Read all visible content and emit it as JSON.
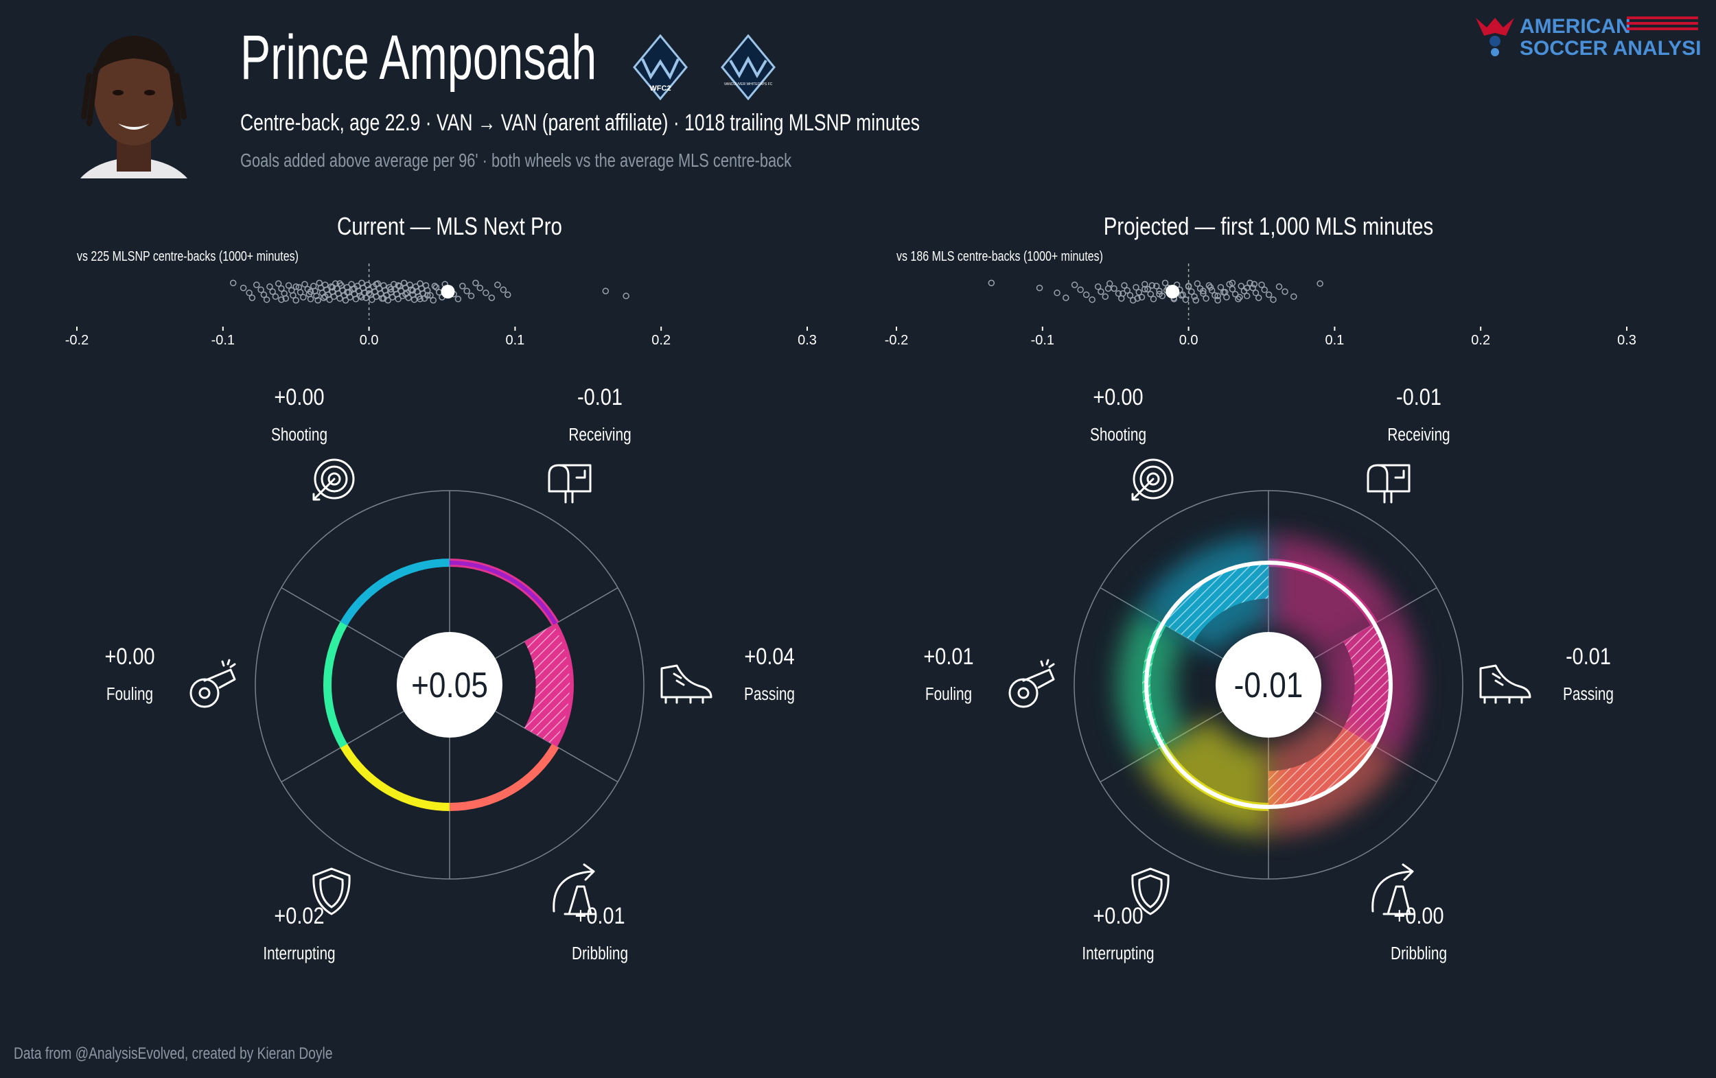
{
  "header": {
    "player_name": "Prince Amponsah",
    "subtitle": "Centre-back, age 22.9 · VAN → VAN (parent affiliate) · 1018 trailing MLSNP minutes",
    "note": "Goals added above average per 96' · both wheels vs the average MLS centre-back",
    "badge_left_text": "WFC2",
    "badge_right_text": "VANCOUVER WHITECAPS FC"
  },
  "brand": {
    "line1": "AMERICAN",
    "line2": "SOCCER ANALYSIS"
  },
  "footer": {
    "credit": "Data from @AnalysisEvolved, created by Kieran Doyle"
  },
  "colors": {
    "background": "#17202b",
    "shooting": "#e0348f",
    "receiving": "#e0348f",
    "passing": "#ff6b5e",
    "dribbling": "#f5f01a",
    "interrupting": "#2ef0a0",
    "fouling": "#16b3d9",
    "ring_purple": "#a020c8",
    "grid": "#7a828c"
  },
  "chart_data": [
    {
      "type": "radial-bar",
      "title": "Current — MLS Next Pro",
      "strip_label": "vs 225 MLSNP centre-backs (1000+ minutes)",
      "strip_ticks": [
        "-0.2",
        "-0.1",
        "0.0",
        "0.1",
        "0.2",
        "0.3"
      ],
      "strip_domain": [
        -0.2,
        0.3
      ],
      "player_value": 0.054,
      "others_x": [
        -0.093,
        -0.086,
        -0.082,
        -0.08,
        -0.077,
        -0.074,
        -0.072,
        -0.07,
        -0.068,
        -0.066,
        -0.064,
        -0.062,
        -0.06,
        -0.058,
        -0.057,
        -0.055,
        -0.053,
        -0.052,
        -0.05,
        -0.048,
        -0.047,
        -0.045,
        -0.044,
        -0.042,
        -0.041,
        -0.04,
        -0.038,
        -0.037,
        -0.036,
        -0.034,
        -0.033,
        -0.032,
        -0.031,
        -0.03,
        -0.029,
        -0.028,
        -0.027,
        -0.026,
        -0.025,
        -0.024,
        -0.023,
        -0.022,
        -0.021,
        -0.02,
        -0.019,
        -0.018,
        -0.017,
        -0.016,
        -0.015,
        -0.014,
        -0.013,
        -0.012,
        -0.011,
        -0.01,
        -0.009,
        -0.008,
        -0.007,
        -0.006,
        -0.005,
        -0.004,
        -0.003,
        -0.002,
        -0.001,
        0.0,
        0.001,
        0.002,
        0.003,
        0.004,
        0.005,
        0.006,
        0.007,
        0.008,
        0.009,
        0.01,
        0.011,
        0.012,
        0.013,
        0.014,
        0.015,
        0.016,
        0.017,
        0.018,
        0.019,
        0.02,
        0.021,
        0.022,
        0.023,
        0.024,
        0.025,
        0.026,
        0.027,
        0.028,
        0.029,
        0.03,
        0.031,
        0.032,
        0.033,
        0.034,
        0.035,
        0.036,
        0.037,
        0.038,
        0.039,
        0.04,
        0.042,
        0.044,
        0.046,
        0.048,
        0.05,
        0.052,
        0.055,
        0.058,
        0.061,
        0.064,
        0.067,
        0.07,
        0.073,
        0.076,
        0.08,
        0.084,
        0.088,
        0.092,
        0.095,
        -0.06,
        -0.05,
        -0.04,
        -0.03,
        -0.02,
        -0.01,
        0.0,
        0.01,
        0.02,
        0.03,
        0.04,
        -0.035,
        -0.025,
        -0.015,
        -0.005,
        0.005,
        0.015,
        0.025,
        0.035,
        0.045,
        0.162,
        0.176
      ],
      "center_value": "+0.05",
      "segments": [
        {
          "name": "Shooting",
          "value_label": "+0.00",
          "value": 0.0,
          "color": "#e0348f",
          "icon": "target-icon",
          "radius": 0.6,
          "hatched": false
        },
        {
          "name": "Receiving",
          "value_label": "-0.01",
          "value": -0.01,
          "color": "#e0348f",
          "icon": "mailbox-icon",
          "radius": 0.6,
          "hatched": true
        },
        {
          "name": "Passing",
          "value_label": "+0.04",
          "value": 0.04,
          "color": "#ff6b5e",
          "icon": "boot-icon",
          "radius": 0.84,
          "hatched": false
        },
        {
          "name": "Dribbling",
          "value_label": "+0.01",
          "value": 0.01,
          "color": "#f5f01a",
          "icon": "cone-arrow-icon",
          "radius": 0.66,
          "hatched": false
        },
        {
          "name": "Interrupting",
          "value_label": "+0.02",
          "value": 0.02,
          "color": "#2ef0a0",
          "icon": "shield-icon",
          "radius": 0.74,
          "hatched": false
        },
        {
          "name": "Fouling",
          "value_label": "+0.00",
          "value": 0.0,
          "color": "#16b3d9",
          "icon": "whistle-icon",
          "radius": 0.6,
          "hatched": false
        }
      ]
    },
    {
      "type": "radial-bar",
      "title": "Projected — first 1,000 MLS minutes",
      "strip_label": "vs 186 MLS centre-backs (1000+ minutes)",
      "strip_ticks": [
        "-0.2",
        "-0.1",
        "0.0",
        "0.1",
        "0.2",
        "0.3"
      ],
      "strip_domain": [
        -0.2,
        0.3
      ],
      "player_value": -0.011,
      "others_x": [
        -0.135,
        -0.102,
        -0.09,
        -0.084,
        -0.078,
        -0.074,
        -0.07,
        -0.066,
        -0.062,
        -0.06,
        -0.057,
        -0.054,
        -0.051,
        -0.048,
        -0.046,
        -0.044,
        -0.042,
        -0.04,
        -0.038,
        -0.036,
        -0.034,
        -0.032,
        -0.03,
        -0.028,
        -0.026,
        -0.024,
        -0.022,
        -0.02,
        -0.018,
        -0.016,
        -0.014,
        -0.012,
        -0.01,
        -0.008,
        -0.006,
        -0.004,
        -0.002,
        0.0,
        0.002,
        0.004,
        0.006,
        0.008,
        0.01,
        0.012,
        0.014,
        0.016,
        0.018,
        0.02,
        0.022,
        0.024,
        0.026,
        0.028,
        0.03,
        0.032,
        0.034,
        0.036,
        0.038,
        0.04,
        0.042,
        0.044,
        0.046,
        0.048,
        0.05,
        0.052,
        0.055,
        0.058,
        0.062,
        0.066,
        0.072,
        0.09,
        -0.055,
        -0.045,
        -0.035,
        -0.025,
        -0.015,
        -0.005,
        0.005,
        0.015,
        0.025,
        0.035,
        0.045,
        -0.03,
        -0.02,
        -0.01,
        0.0,
        0.01,
        0.02,
        0.03,
        0.04
      ],
      "center_value": "-0.01",
      "segments": [
        {
          "name": "Shooting",
          "value_label": "+0.00",
          "value": 0.0,
          "color": "#e0348f",
          "icon": "target-icon",
          "radius": 0.6,
          "hatched": false
        },
        {
          "name": "Receiving",
          "value_label": "-0.01",
          "value": -0.01,
          "color": "#e0348f",
          "icon": "mailbox-icon",
          "radius": 0.6,
          "hatched": true
        },
        {
          "name": "Passing",
          "value_label": "-0.01",
          "value": -0.01,
          "color": "#ff6b5e",
          "icon": "boot-icon",
          "radius": 0.6,
          "hatched": true
        },
        {
          "name": "Dribbling",
          "value_label": "+0.00",
          "value": 0.0,
          "color": "#f5f01a",
          "icon": "cone-arrow-icon",
          "radius": 0.64,
          "hatched": false
        },
        {
          "name": "Interrupting",
          "value_label": "+0.00",
          "value": 0.0,
          "color": "#2ef0a0",
          "icon": "shield-icon",
          "radius": 0.86,
          "hatched": true
        },
        {
          "name": "Fouling",
          "value_label": "+0.01",
          "value": 0.01,
          "color": "#16b3d9",
          "icon": "whistle-icon",
          "radius": 0.6,
          "hatched": true
        }
      ]
    }
  ]
}
